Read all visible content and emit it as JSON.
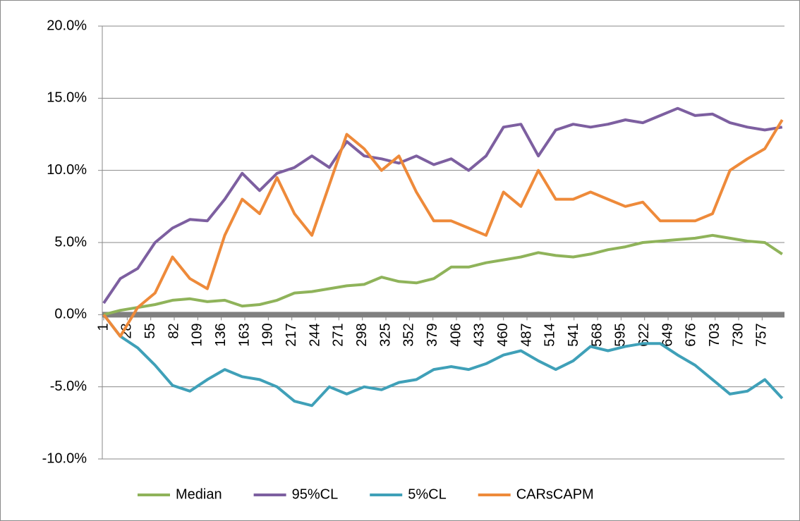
{
  "chart_data": {
    "type": "line",
    "x": [
      1,
      20,
      40,
      60,
      80,
      100,
      120,
      140,
      160,
      180,
      200,
      220,
      240,
      260,
      280,
      300,
      320,
      340,
      360,
      380,
      400,
      420,
      440,
      460,
      480,
      500,
      520,
      540,
      560,
      580,
      600,
      620,
      640,
      660,
      680,
      700,
      720,
      740,
      760,
      780
    ],
    "xlim": [
      1,
      781
    ],
    "xticks": [
      1,
      28,
      55,
      82,
      109,
      136,
      163,
      190,
      217,
      244,
      271,
      298,
      325,
      352,
      379,
      406,
      433,
      460,
      487,
      514,
      541,
      568,
      595,
      622,
      649,
      676,
      703,
      730,
      757
    ],
    "ylim": [
      -10,
      20
    ],
    "yticks": [
      {
        "value": -10,
        "label": "-10.0%"
      },
      {
        "value": -5,
        "label": "-5.0%"
      },
      {
        "value": 0,
        "label": "0.0%"
      },
      {
        "value": 5,
        "label": "5.0%"
      },
      {
        "value": 10,
        "label": "10.0%"
      },
      {
        "value": 15,
        "label": "15.0%"
      },
      {
        "value": 20,
        "label": "20.0%"
      }
    ],
    "grid": true,
    "legend": "bottom",
    "series": [
      {
        "name": "Median",
        "color": "#8fb35a",
        "values": [
          0.0,
          0.3,
          0.5,
          0.7,
          1.0,
          1.1,
          0.9,
          1.0,
          0.6,
          0.7,
          1.0,
          1.5,
          1.6,
          1.8,
          2.0,
          2.1,
          2.6,
          2.3,
          2.2,
          2.5,
          3.3,
          3.3,
          3.6,
          3.8,
          4.0,
          4.3,
          4.1,
          4.0,
          4.2,
          4.5,
          4.7,
          5.0,
          5.1,
          5.2,
          5.3,
          5.5,
          5.3,
          5.1,
          5.0,
          4.2
        ]
      },
      {
        "name": "95%CL",
        "color": "#7d5fa0",
        "values": [
          0.8,
          2.5,
          3.2,
          5.0,
          6.0,
          6.6,
          6.5,
          8.0,
          9.8,
          8.6,
          9.8,
          10.2,
          11.0,
          10.2,
          12.0,
          11.0,
          10.8,
          10.5,
          11.0,
          10.4,
          10.8,
          10.0,
          11.0,
          13.0,
          13.2,
          11.0,
          12.8,
          13.2,
          13.0,
          13.2,
          13.5,
          13.3,
          13.8,
          14.3,
          13.8,
          13.9,
          13.3,
          13.0,
          12.8,
          13.0
        ]
      },
      {
        "name": "5%CL",
        "color": "#3fa0b8",
        "values": [
          0.0,
          -1.5,
          -2.3,
          -3.5,
          -4.9,
          -5.3,
          -4.5,
          -3.8,
          -4.3,
          -4.5,
          -5.0,
          -6.0,
          -6.3,
          -5.0,
          -5.5,
          -5.0,
          -5.2,
          -4.7,
          -4.5,
          -3.8,
          -3.6,
          -3.8,
          -3.4,
          -2.8,
          -2.5,
          -3.2,
          -3.8,
          -3.2,
          -2.2,
          -2.5,
          -2.2,
          -2.0,
          -2.0,
          -2.8,
          -3.5,
          -4.5,
          -5.5,
          -5.3,
          -4.5,
          -5.8
        ]
      },
      {
        "name": "CARsCAPM",
        "color": "#ee8a3a",
        "values": [
          0.0,
          -1.5,
          0.5,
          1.5,
          4.0,
          2.5,
          1.8,
          5.5,
          8.0,
          7.0,
          9.5,
          7.0,
          5.5,
          9.0,
          12.5,
          11.5,
          10.0,
          11.0,
          8.5,
          6.5,
          6.5,
          6.0,
          5.5,
          8.5,
          7.5,
          10.0,
          8.0,
          8.0,
          8.5,
          8.0,
          7.5,
          7.8,
          6.5,
          6.5,
          6.5,
          7.0,
          10.0,
          10.8,
          11.5,
          13.5
        ]
      }
    ]
  }
}
